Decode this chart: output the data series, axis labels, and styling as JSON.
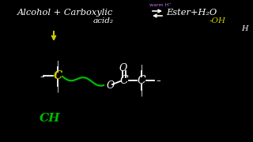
{
  "bg_color": "#000000",
  "white": "#ffffff",
  "yellow": "#cccc00",
  "green": "#00bb00",
  "purple": "#cc77ff",
  "figsize": [
    3.2,
    1.8
  ],
  "dpi": 100,
  "title_text": "Alcohol + Carboxylic",
  "title_right": "Ester+H₂O",
  "acid_text": "acid₂",
  "warm_text": "warm H⁺",
  "minus_oh": "-OH",
  "h_label": "H",
  "ch_label": "CH"
}
